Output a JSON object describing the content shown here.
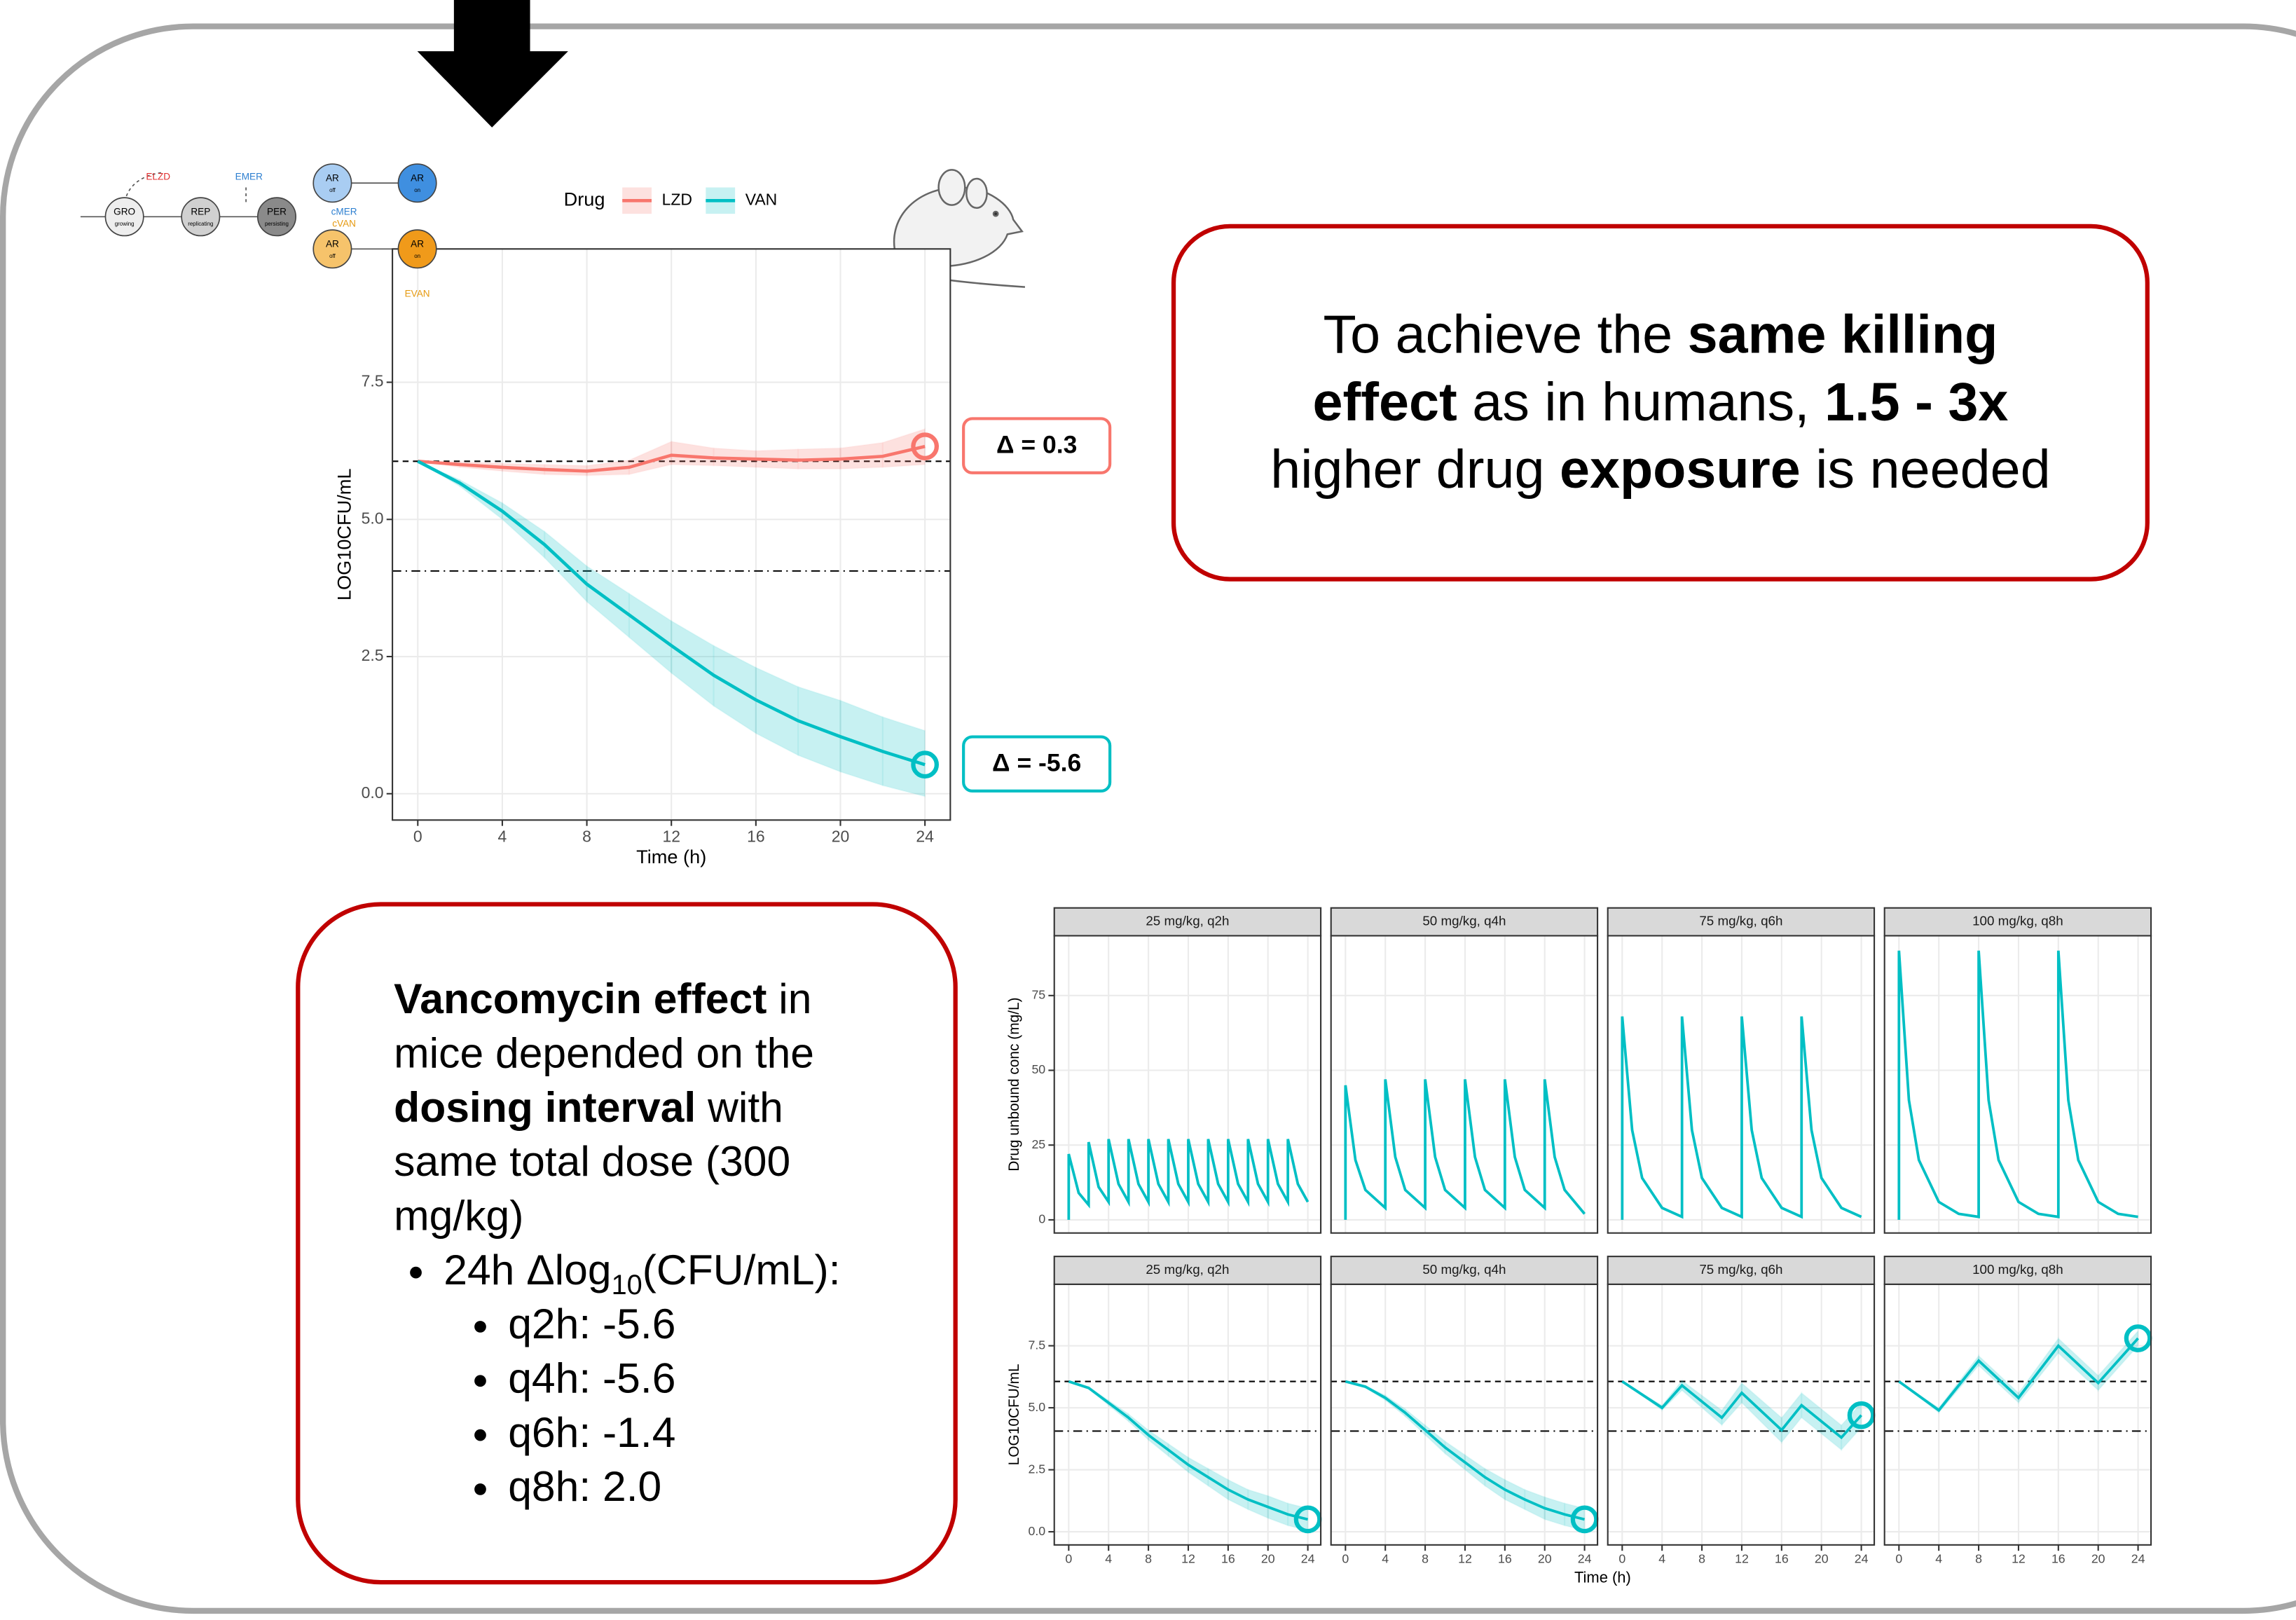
{
  "chart_data": [
    {
      "type": "line",
      "ylabel": "LOG10CFU/mL",
      "xlabel": "Time (h)",
      "x": [
        0,
        2,
        4,
        6,
        8,
        10,
        12,
        14,
        16,
        18,
        20,
        22,
        24
      ],
      "series": [
        {
          "name": "LZD",
          "color": "#f8766d",
          "end_marker": true,
          "end_label": "Δ = 0.3",
          "values": [
            6.06,
            6.0,
            5.95,
            5.91,
            5.88,
            5.95,
            6.17,
            6.12,
            6.1,
            6.08,
            6.1,
            6.15,
            6.33
          ],
          "lower": [
            6.06,
            5.95,
            5.88,
            5.82,
            5.8,
            5.82,
            6.0,
            5.98,
            5.95,
            5.92,
            5.92,
            5.95,
            6.0
          ],
          "upper": [
            6.06,
            6.05,
            6.02,
            6.0,
            5.98,
            6.08,
            6.42,
            6.3,
            6.25,
            6.28,
            6.3,
            6.4,
            6.65
          ]
        },
        {
          "name": "VAN",
          "color": "#00bfc4",
          "end_marker": true,
          "end_label": "Δ = -5.6",
          "values": [
            6.06,
            5.66,
            5.15,
            4.54,
            3.82,
            3.26,
            2.7,
            2.16,
            1.71,
            1.33,
            1.04,
            0.77,
            0.53
          ],
          "lower": [
            6.06,
            5.6,
            5.0,
            4.3,
            3.5,
            2.85,
            2.2,
            1.6,
            1.1,
            0.7,
            0.4,
            0.15,
            -0.05
          ],
          "upper": [
            6.06,
            5.72,
            5.3,
            4.78,
            4.15,
            3.65,
            3.15,
            2.7,
            2.3,
            1.95,
            1.7,
            1.4,
            1.15
          ]
        }
      ],
      "legend": {
        "title": "Drug"
      },
      "hlines": [
        {
          "value": 6.06,
          "style": "dashed"
        },
        {
          "value": 4.06,
          "style": "dotdash"
        }
      ],
      "xlim": [
        -1.2,
        25.2
      ],
      "xticks": [
        0,
        4,
        8,
        12,
        16,
        20,
        24
      ],
      "ylim": [
        -0.48,
        9.93
      ],
      "yticks": [
        {
          "value": 0,
          "label": "0.0"
        },
        2.5,
        {
          "value": 5,
          "label": "5.0"
        },
        7.5
      ],
      "grid": true
    },
    {
      "type": "line",
      "title": "25 mg/kg, q2h",
      "ylabel": "Drug unbound conc (mg/L)",
      "x": [
        0,
        0,
        1,
        2,
        2,
        3,
        4,
        4,
        5,
        6,
        6,
        7,
        8,
        8,
        9,
        10,
        10,
        11,
        12,
        12,
        13,
        14,
        14,
        15,
        16,
        16,
        17,
        18,
        18,
        19,
        20,
        20,
        21,
        22,
        22,
        23,
        24
      ],
      "series": [
        {
          "color": "#00bfc4",
          "values": [
            0,
            22,
            9,
            5,
            26,
            11,
            6,
            27,
            12,
            6,
            27,
            12,
            6,
            27,
            12,
            6,
            27,
            12,
            6,
            27,
            12,
            6,
            27,
            12,
            6,
            27,
            12,
            6,
            27,
            12,
            6,
            27,
            12,
            6,
            27,
            12,
            6
          ]
        }
      ],
      "xlim": [
        -1.45,
        25.3
      ],
      "xticks": [
        0,
        4,
        8,
        12,
        16,
        20,
        24
      ],
      "ylim": [
        -4.4,
        95
      ],
      "yticks": [
        0,
        25,
        50,
        75
      ],
      "grid": true
    },
    {
      "type": "line",
      "title": "50 mg/kg, q4h",
      "x": [
        0,
        0,
        1,
        2,
        4,
        4,
        5,
        6,
        8,
        8,
        9,
        10,
        12,
        12,
        13,
        14,
        16,
        16,
        17,
        18,
        20,
        20,
        21,
        22,
        24
      ],
      "series": [
        {
          "color": "#00bfc4",
          "values": [
            0,
            45,
            20,
            10,
            4,
            47,
            21,
            10,
            4,
            47,
            21,
            10,
            4,
            47,
            21,
            10,
            4,
            47,
            21,
            10,
            4,
            47,
            21,
            10,
            2
          ]
        }
      ],
      "xlim": [
        -1.45,
        25.3
      ],
      "xticks": [
        0,
        4,
        8,
        12,
        16,
        20,
        24
      ],
      "ylim": [
        -4.4,
        95
      ],
      "yticks": [
        0,
        25,
        50,
        75
      ],
      "grid": true
    },
    {
      "type": "line",
      "title": "75 mg/kg, q6h",
      "x": [
        0,
        0,
        1,
        2,
        4,
        6,
        6,
        7,
        8,
        10,
        12,
        12,
        13,
        14,
        16,
        18,
        18,
        19,
        20,
        22,
        24
      ],
      "series": [
        {
          "color": "#00bfc4",
          "values": [
            0,
            68,
            30,
            14,
            4,
            1,
            68,
            30,
            14,
            4,
            1,
            68,
            30,
            14,
            4,
            1,
            68,
            30,
            14,
            4,
            1
          ]
        }
      ],
      "xlim": [
        -1.45,
        25.3
      ],
      "xticks": [
        0,
        4,
        8,
        12,
        16,
        20,
        24
      ],
      "ylim": [
        -4.4,
        95
      ],
      "yticks": [
        0,
        25,
        50,
        75
      ],
      "grid": true
    },
    {
      "type": "line",
      "title": "100 mg/kg, q8h",
      "x": [
        0,
        0,
        1,
        2,
        4,
        6,
        8,
        8,
        9,
        10,
        12,
        14,
        16,
        16,
        17,
        18,
        20,
        22,
        24
      ],
      "series": [
        {
          "color": "#00bfc4",
          "values": [
            0,
            90,
            40,
            20,
            6,
            2,
            1,
            90,
            40,
            20,
            6,
            2,
            1,
            90,
            40,
            20,
            6,
            2,
            1
          ]
        }
      ],
      "xlim": [
        -1.45,
        25.3
      ],
      "xticks": [
        0,
        4,
        8,
        12,
        16,
        20,
        24
      ],
      "ylim": [
        -4.4,
        95
      ],
      "yticks": [
        0,
        25,
        50,
        75
      ],
      "grid": true
    },
    {
      "type": "line",
      "title": "25 mg/kg, q2h",
      "ylabel": "LOG10CFU/mL",
      "xlabel": "Time (h)",
      "x": [
        0,
        2,
        4,
        6,
        8,
        10,
        12,
        14,
        16,
        18,
        20,
        22,
        24
      ],
      "series": [
        {
          "color": "#00bfc4",
          "end_marker": true,
          "values": [
            6.06,
            5.8,
            5.2,
            4.6,
            3.9,
            3.3,
            2.7,
            2.2,
            1.7,
            1.3,
            1.0,
            0.7,
            0.5
          ],
          "lower": [
            6.06,
            5.75,
            5.1,
            4.45,
            3.7,
            3.05,
            2.4,
            1.85,
            1.3,
            0.9,
            0.55,
            0.25,
            0.05
          ],
          "upper": [
            6.06,
            5.85,
            5.3,
            4.75,
            4.1,
            3.55,
            3.0,
            2.55,
            2.1,
            1.7,
            1.45,
            1.15,
            0.95
          ]
        }
      ],
      "hlines": [
        {
          "value": 6.06,
          "style": "dashed"
        },
        {
          "value": 4.06,
          "style": "dotdash"
        }
      ],
      "xlim": [
        -1.45,
        25.3
      ],
      "xticks": [
        0,
        4,
        8,
        12,
        16,
        20,
        24
      ],
      "ylim": [
        -0.53,
        9.98
      ],
      "yticks": [
        {
          "value": 0,
          "label": "0.0"
        },
        2.5,
        {
          "value": 5,
          "label": "5.0"
        },
        7.5
      ],
      "grid": true
    },
    {
      "type": "line",
      "title": "50 mg/kg, q4h",
      "x": [
        0,
        2,
        4,
        6,
        8,
        10,
        12,
        14,
        16,
        18,
        20,
        22,
        24
      ],
      "series": [
        {
          "color": "#00bfc4",
          "end_marker": true,
          "values": [
            6.06,
            5.85,
            5.4,
            4.8,
            4.1,
            3.4,
            2.8,
            2.2,
            1.7,
            1.3,
            0.95,
            0.7,
            0.5
          ],
          "lower": [
            6.06,
            5.8,
            5.3,
            4.65,
            3.9,
            3.15,
            2.5,
            1.85,
            1.3,
            0.9,
            0.5,
            0.25,
            0.05
          ],
          "upper": [
            6.06,
            5.9,
            5.5,
            4.95,
            4.3,
            3.65,
            3.1,
            2.55,
            2.1,
            1.7,
            1.4,
            1.15,
            0.95
          ]
        }
      ],
      "hlines": [
        {
          "value": 6.06,
          "style": "dashed"
        },
        {
          "value": 4.06,
          "style": "dotdash"
        }
      ],
      "xlim": [
        -1.45,
        25.3
      ],
      "xticks": [
        0,
        4,
        8,
        12,
        16,
        20,
        24
      ],
      "ylim": [
        -0.53,
        9.98
      ],
      "yticks": [
        {
          "value": 0,
          "label": "0.0"
        },
        2.5,
        {
          "value": 5,
          "label": "5.0"
        },
        7.5
      ],
      "grid": true
    },
    {
      "type": "line",
      "title": "75 mg/kg, q6h",
      "x": [
        0,
        4,
        6,
        10,
        12,
        16,
        18,
        22,
        24
      ],
      "series": [
        {
          "color": "#00bfc4",
          "end_marker": true,
          "values": [
            6.06,
            5.0,
            5.9,
            4.6,
            5.6,
            4.1,
            5.1,
            3.8,
            4.7
          ],
          "lower": [
            6.06,
            4.9,
            5.7,
            4.3,
            5.2,
            3.6,
            4.6,
            3.3,
            4.2
          ],
          "upper": [
            6.06,
            5.1,
            6.1,
            4.9,
            6.0,
            4.6,
            5.6,
            4.3,
            5.2
          ]
        }
      ],
      "hlines": [
        {
          "value": 6.06,
          "style": "dashed"
        },
        {
          "value": 4.06,
          "style": "dotdash"
        }
      ],
      "xlim": [
        -1.45,
        25.3
      ],
      "xticks": [
        0,
        4,
        8,
        12,
        16,
        20,
        24
      ],
      "ylim": [
        -0.53,
        9.98
      ],
      "yticks": [
        {
          "value": 0,
          "label": "0.0"
        },
        2.5,
        {
          "value": 5,
          "label": "5.0"
        },
        7.5
      ],
      "grid": true
    },
    {
      "type": "line",
      "title": "100 mg/kg, q8h",
      "x": [
        0,
        4,
        8,
        12,
        16,
        20,
        24
      ],
      "series": [
        {
          "color": "#00bfc4",
          "end_marker": true,
          "values": [
            6.06,
            4.9,
            6.9,
            5.4,
            7.5,
            6.0,
            7.8
          ],
          "lower": [
            6.06,
            4.8,
            6.7,
            5.2,
            7.2,
            5.7,
            7.5
          ],
          "upper": [
            6.06,
            5.0,
            7.1,
            5.6,
            7.8,
            6.3,
            8.1
          ]
        }
      ],
      "hlines": [
        {
          "value": 6.06,
          "style": "dashed"
        },
        {
          "value": 4.06,
          "style": "dotdash"
        }
      ],
      "xlim": [
        -1.45,
        25.3
      ],
      "xticks": [
        0,
        4,
        8,
        12,
        16,
        20,
        24
      ],
      "ylim": [
        -0.53,
        9.98
      ],
      "yticks": [
        {
          "value": 0,
          "label": "0.0"
        },
        2.5,
        {
          "value": 5,
          "label": "5.0"
        },
        7.5
      ],
      "grid": true
    }
  ],
  "diagram": {
    "nodes": [
      {
        "label": "GRO",
        "sub": "growing",
        "color": "#eeeeee"
      },
      {
        "label": "REP",
        "sub": "replicating",
        "color": "#d0d0d0"
      },
      {
        "label": "PER",
        "sub": "persisting",
        "color": "#8a8a8a"
      },
      {
        "label": "AR",
        "sub": "off",
        "color": "#a9cdf2"
      },
      {
        "label": "AR",
        "sub": "on",
        "color": "#3f8fe0"
      },
      {
        "label": "AR",
        "sub": "off",
        "color": "#f6c36b"
      },
      {
        "label": "AR",
        "sub": "on",
        "color": "#f09a1a"
      }
    ],
    "labels": [
      {
        "text": "ELZD",
        "color": "#e03030"
      },
      {
        "text": "EMER",
        "color": "#2d7fd0"
      },
      {
        "text": "cMER",
        "color": "#2d7fd0"
      },
      {
        "text": "cVAN",
        "color": "#e69a10"
      },
      {
        "text": "EVAN",
        "color": "#e69a10"
      }
    ]
  },
  "text_box_1": {
    "runs": [
      {
        "text": "To achieve the ",
        "bold": false
      },
      {
        "text": "same killing effect",
        "bold": true
      },
      {
        "text": " as in humans, ",
        "bold": false
      },
      {
        "text": "1.5 - 3x",
        "bold": true
      },
      {
        "text": " higher drug ",
        "bold": false
      },
      {
        "text": "exposure",
        "bold": true
      },
      {
        "text": " is needed",
        "bold": false
      }
    ]
  },
  "text_box_2": {
    "runs": [
      {
        "text": "Vancomycin effect",
        "bold": true
      },
      {
        "text": " in mice depended on the ",
        "bold": false
      },
      {
        "text": "dosing interval",
        "bold": true
      },
      {
        "text": " with same total dose (300 mg/kg)",
        "bold": false
      }
    ],
    "bullet": [
      {
        "text": "24h Δlog",
        "sub": false
      },
      {
        "text": "10",
        "sub": true
      },
      {
        "text": "(CFU/mL):",
        "sub": false
      }
    ],
    "sub_bullets": [
      "q2h: -5.6",
      "q4h: -5.6",
      "q6h: -1.4",
      "q8h: 2.0"
    ]
  }
}
